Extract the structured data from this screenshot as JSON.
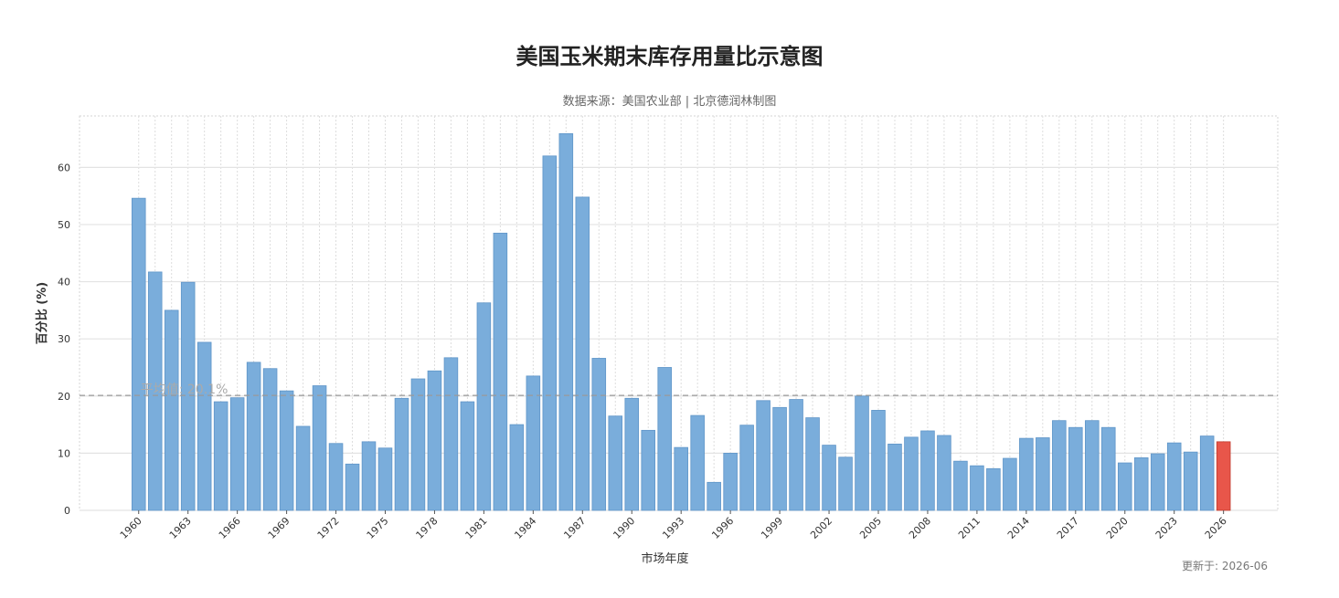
{
  "title": "美国玉米期末库存用量比示意图",
  "subtitle": "数据来源：美国农业部 | 北京德润林制图",
  "updated": "更新于: 2026-06",
  "chart_data": {
    "type": "bar",
    "xlabel": "市场年度",
    "ylabel": "百分比 (%)",
    "ylim": [
      0,
      69
    ],
    "yticks": [
      0,
      10,
      20,
      30,
      40,
      50,
      60
    ],
    "grid": true,
    "x_tick_labels": [
      "1960",
      "1963",
      "1966",
      "1969",
      "1972",
      "1975",
      "1978",
      "1981",
      "1984",
      "1987",
      "1990",
      "1993",
      "1996",
      "1999",
      "2002",
      "2005",
      "2008",
      "2011",
      "2014",
      "2017",
      "2020",
      "2023",
      "2026"
    ],
    "mean_line": {
      "value": 20.1,
      "label": "平均值: 20.1%"
    },
    "colors": {
      "bar": "#7aaddb",
      "bar_edge": "#5f95c8",
      "highlight": "#e8564a",
      "highlight_edge": "#c0392b",
      "mean": "#999999",
      "grid": "#dddddd"
    },
    "categories": [
      1960,
      1961,
      1962,
      1963,
      1964,
      1965,
      1966,
      1967,
      1968,
      1969,
      1970,
      1971,
      1972,
      1973,
      1974,
      1975,
      1976,
      1977,
      1978,
      1979,
      1980,
      1981,
      1982,
      1983,
      1984,
      1985,
      1986,
      1987,
      1988,
      1989,
      1990,
      1991,
      1992,
      1993,
      1994,
      1995,
      1996,
      1997,
      1998,
      1999,
      2000,
      2001,
      2002,
      2003,
      2004,
      2005,
      2006,
      2007,
      2008,
      2009,
      2010,
      2011,
      2012,
      2013,
      2014,
      2015,
      2016,
      2017,
      2018,
      2019,
      2020,
      2021,
      2022,
      2023,
      2024,
      2025,
      2026
    ],
    "values": [
      54.6,
      41.7,
      35.0,
      39.9,
      29.4,
      19.0,
      19.7,
      25.9,
      24.8,
      20.9,
      14.7,
      21.8,
      11.7,
      8.1,
      12.0,
      10.9,
      19.6,
      23.0,
      24.4,
      26.7,
      19.0,
      36.3,
      48.5,
      15.0,
      23.5,
      62.0,
      65.9,
      54.8,
      26.6,
      16.5,
      19.6,
      14.0,
      25.0,
      11.0,
      16.6,
      4.9,
      10.0,
      14.9,
      19.2,
      18.0,
      19.4,
      16.2,
      11.4,
      9.3,
      20.0,
      17.5,
      11.6,
      12.8,
      13.9,
      13.1,
      8.6,
      7.8,
      7.3,
      9.1,
      12.6,
      12.7,
      15.7,
      14.5,
      15.7,
      14.5,
      8.3,
      9.2,
      9.9,
      11.8,
      10.2,
      13.0,
      12.0
    ],
    "highlight_category": 2026
  }
}
